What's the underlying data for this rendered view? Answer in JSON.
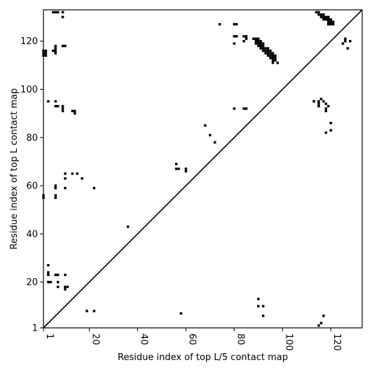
{
  "chart_data": {
    "type": "heatmap",
    "title": "",
    "xlabel": "Residue index of top L/5 contact map",
    "ylabel": "Residue index of top L contact map",
    "xlim": [
      1,
      133
    ],
    "ylim": [
      1,
      133
    ],
    "xticks": [
      1,
      20,
      40,
      60,
      80,
      100,
      120
    ],
    "yticks": [
      1,
      20,
      40,
      60,
      80,
      100,
      120
    ],
    "diagonal": true,
    "cell_color": "#000000",
    "background_color": "#ffffff",
    "upper_contacts": [
      [
        1,
        116
      ],
      [
        1,
        115
      ],
      [
        1,
        114
      ],
      [
        2,
        116
      ],
      [
        2,
        115
      ],
      [
        2,
        114
      ],
      [
        5,
        132
      ],
      [
        6,
        132
      ],
      [
        7,
        132
      ],
      [
        9,
        132
      ],
      [
        9,
        130
      ],
      [
        5,
        116
      ],
      [
        6,
        116
      ],
      [
        6,
        117
      ],
      [
        6,
        118
      ],
      [
        6,
        115
      ],
      [
        9,
        118
      ],
      [
        10,
        118
      ],
      [
        74,
        127
      ],
      [
        80,
        127
      ],
      [
        81,
        127
      ],
      [
        80,
        122
      ],
      [
        81,
        122
      ],
      [
        80,
        119
      ],
      [
        84,
        122
      ],
      [
        85,
        122
      ],
      [
        84,
        120
      ],
      [
        85,
        121
      ],
      [
        88,
        121
      ],
      [
        89,
        121
      ],
      [
        90,
        121
      ],
      [
        89,
        120
      ],
      [
        90,
        120
      ],
      [
        91,
        120
      ],
      [
        89,
        119
      ],
      [
        90,
        119
      ],
      [
        91,
        119
      ],
      [
        92,
        119
      ],
      [
        90,
        118
      ],
      [
        91,
        118
      ],
      [
        92,
        118
      ],
      [
        91,
        117
      ],
      [
        92,
        117
      ],
      [
        93,
        117
      ],
      [
        94,
        117
      ],
      [
        92,
        116
      ],
      [
        93,
        116
      ],
      [
        94,
        116
      ],
      [
        95,
        116
      ],
      [
        93,
        115
      ],
      [
        94,
        115
      ],
      [
        95,
        115
      ],
      [
        96,
        115
      ],
      [
        94,
        114
      ],
      [
        95,
        114
      ],
      [
        96,
        114
      ],
      [
        97,
        114
      ],
      [
        95,
        113
      ],
      [
        96,
        113
      ],
      [
        97,
        113
      ],
      [
        96,
        112
      ],
      [
        97,
        112
      ],
      [
        96,
        111
      ],
      [
        98,
        111
      ],
      [
        114,
        132
      ],
      [
        115,
        132
      ],
      [
        115,
        131
      ],
      [
        116,
        131
      ],
      [
        117,
        131
      ],
      [
        116,
        130
      ],
      [
        117,
        130
      ],
      [
        118,
        130
      ],
      [
        119,
        130
      ],
      [
        117,
        129
      ],
      [
        118,
        129
      ],
      [
        119,
        129
      ],
      [
        120,
        129
      ],
      [
        119,
        128
      ],
      [
        120,
        128
      ],
      [
        121,
        128
      ],
      [
        119,
        127
      ],
      [
        120,
        127
      ],
      [
        121,
        127
      ],
      [
        125,
        119
      ],
      [
        126,
        120
      ],
      [
        126,
        121
      ],
      [
        127,
        117
      ],
      [
        128,
        120
      ],
      [
        3,
        95
      ],
      [
        6,
        95
      ],
      [
        6,
        93
      ],
      [
        7,
        93
      ],
      [
        9,
        93
      ],
      [
        9,
        92
      ],
      [
        9,
        91
      ],
      [
        13,
        91
      ],
      [
        14,
        91
      ],
      [
        14,
        90
      ],
      [
        80,
        92
      ],
      [
        84,
        92
      ],
      [
        85,
        92
      ],
      [
        113,
        95
      ],
      [
        115,
        95
      ],
      [
        115,
        94
      ],
      [
        115,
        93
      ],
      [
        116,
        96
      ],
      [
        117,
        95
      ],
      [
        118,
        94
      ],
      [
        118,
        92
      ],
      [
        118,
        91
      ],
      [
        119,
        93
      ],
      [
        118,
        82
      ],
      [
        120,
        83
      ],
      [
        120,
        86
      ],
      [
        68,
        85
      ],
      [
        70,
        81
      ],
      [
        72,
        78
      ],
      [
        56,
        69
      ],
      [
        56,
        67
      ],
      [
        57,
        67
      ],
      [
        60,
        67
      ],
      [
        60,
        66
      ],
      [
        1,
        56
      ],
      [
        1,
        55
      ],
      [
        6,
        60
      ],
      [
        6,
        59
      ],
      [
        6,
        56
      ],
      [
        6,
        55
      ],
      [
        10,
        65
      ],
      [
        10,
        63
      ],
      [
        10,
        59
      ],
      [
        13,
        65
      ],
      [
        15,
        65
      ],
      [
        17,
        63
      ],
      [
        22,
        59
      ],
      [
        36,
        43
      ]
    ],
    "lower_contacts": [
      [
        3,
        27
      ],
      [
        3,
        24
      ],
      [
        3,
        23
      ],
      [
        3,
        20
      ],
      [
        4,
        20
      ],
      [
        6,
        23
      ],
      [
        7,
        23
      ],
      [
        7,
        20
      ],
      [
        7,
        18
      ],
      [
        10,
        23
      ],
      [
        10,
        18
      ],
      [
        11,
        18
      ],
      [
        10,
        17
      ],
      [
        19,
        8
      ],
      [
        22,
        8
      ],
      [
        58,
        7
      ],
      [
        90,
        13
      ],
      [
        90,
        10
      ],
      [
        92,
        10
      ],
      [
        92,
        6
      ],
      [
        115,
        2
      ],
      [
        116,
        3
      ],
      [
        117,
        6
      ]
    ]
  }
}
